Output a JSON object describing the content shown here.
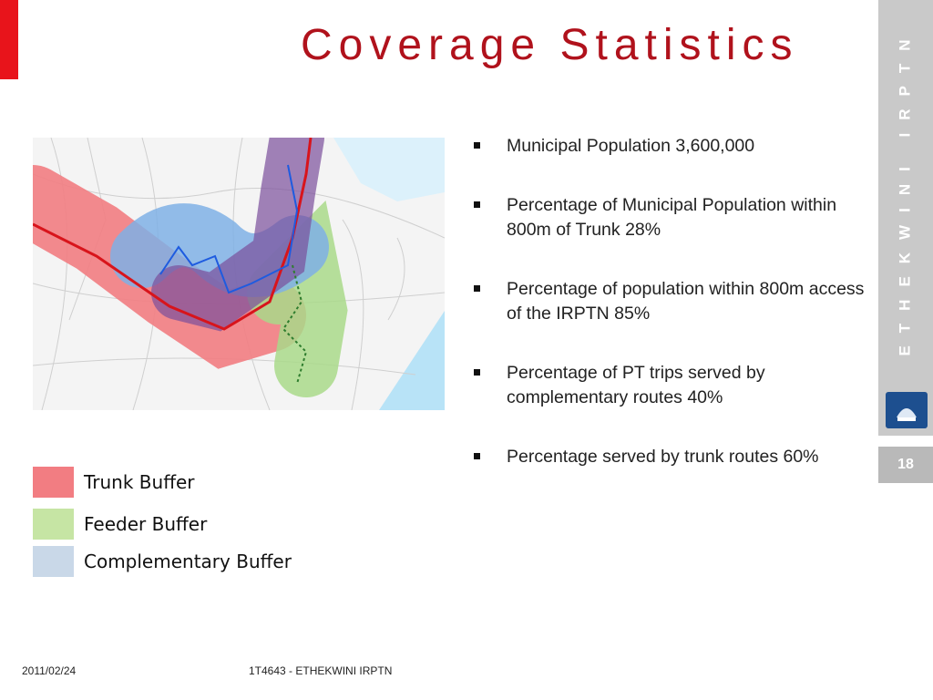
{
  "title": "Coverage Statistics",
  "side_banner": "ETHEKWINI IRPTN",
  "page_number": "18",
  "bullets": [
    "Municipal Population 3,600,000",
    "Percentage of Municipal Population within 800m of Trunk 28%",
    "Percentage of population within 800m access of the IRPTN 85%",
    "Percentage of PT trips served by complementary routes 40%",
    "Percentage served by trunk routes 60%"
  ],
  "legend": [
    {
      "label": "Trunk Buffer",
      "color": "#f27d82"
    },
    {
      "label": "Feeder Buffer",
      "color": "#c6e5a4"
    },
    {
      "label": "Complementary Buffer",
      "color": "#c9d8e8"
    }
  ],
  "footer": {
    "date": "2011/02/24",
    "text": "1T4643 - ETHEKWINI IRPTN"
  },
  "colors": {
    "accent_red": "#e8141b",
    "title_red": "#b0121c",
    "side_gray": "#c9c9c9"
  }
}
